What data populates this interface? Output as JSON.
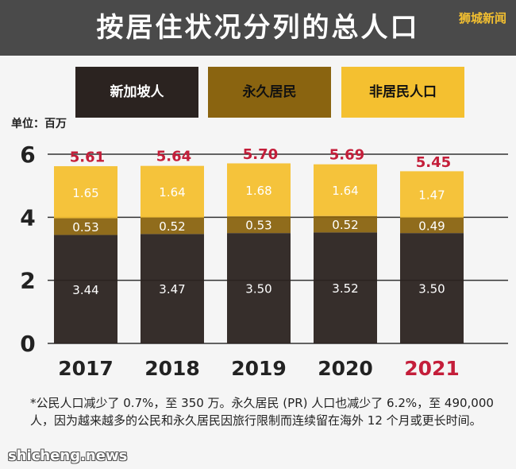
{
  "header": {
    "title": "按居住状况分列的总人口",
    "brand": "狮城新闻"
  },
  "legend": [
    {
      "label": "新加坡人",
      "color": "#2b2320",
      "text_color": "#ffffff"
    },
    {
      "label": "永久居民",
      "color": "#8a6410",
      "text_color": "#111111"
    },
    {
      "label": "非居民人口",
      "color": "#f4c030",
      "text_color": "#111111"
    }
  ],
  "unit_label": "单位：百万",
  "chart_data": {
    "type": "bar",
    "stacked": true,
    "categories": [
      "2017",
      "2018",
      "2019",
      "2020",
      "2021"
    ],
    "highlight_category": "2021",
    "series": [
      {
        "name": "新加坡人",
        "values": [
          3.44,
          3.47,
          3.5,
          3.52,
          3.5
        ],
        "color": "#2b2320",
        "label_color": "#ffffff"
      },
      {
        "name": "永久居民",
        "values": [
          0.53,
          0.52,
          0.53,
          0.52,
          0.49
        ],
        "color": "#8a6410",
        "label_color": "#ffffff"
      },
      {
        "name": "非居民人口",
        "values": [
          1.65,
          1.64,
          1.68,
          1.64,
          1.47
        ],
        "color": "#f4c030",
        "label_color": "#ffffff"
      }
    ],
    "totals": [
      5.61,
      5.64,
      5.7,
      5.69,
      5.45
    ],
    "total_labels": [
      "5.61",
      "5.64",
      "5.70",
      "5.69",
      "5.45"
    ],
    "value_labels": [
      [
        "3.44",
        "3.47",
        "3.50",
        "3.52",
        "3.50"
      ],
      [
        "0.53",
        "0.52",
        "0.53",
        "0.52",
        "0.49"
      ],
      [
        "1.65",
        "1.64",
        "1.68",
        "1.64",
        "1.47"
      ]
    ],
    "yticks": [
      "0",
      "2",
      "4",
      "6"
    ],
    "ylim": [
      0,
      6.5
    ],
    "grid": true,
    "total_color": "#c41e3a"
  },
  "footnote": "*公民人口减少了 0.7%，至 350 万。永久居民 (PR) 人口也减少了 6.2%，至 490,000 人，因为越来越多的公民和永久居民因旅行限制而连续留在海外 12 个月或更长时间。",
  "watermark": "shicheng.news"
}
